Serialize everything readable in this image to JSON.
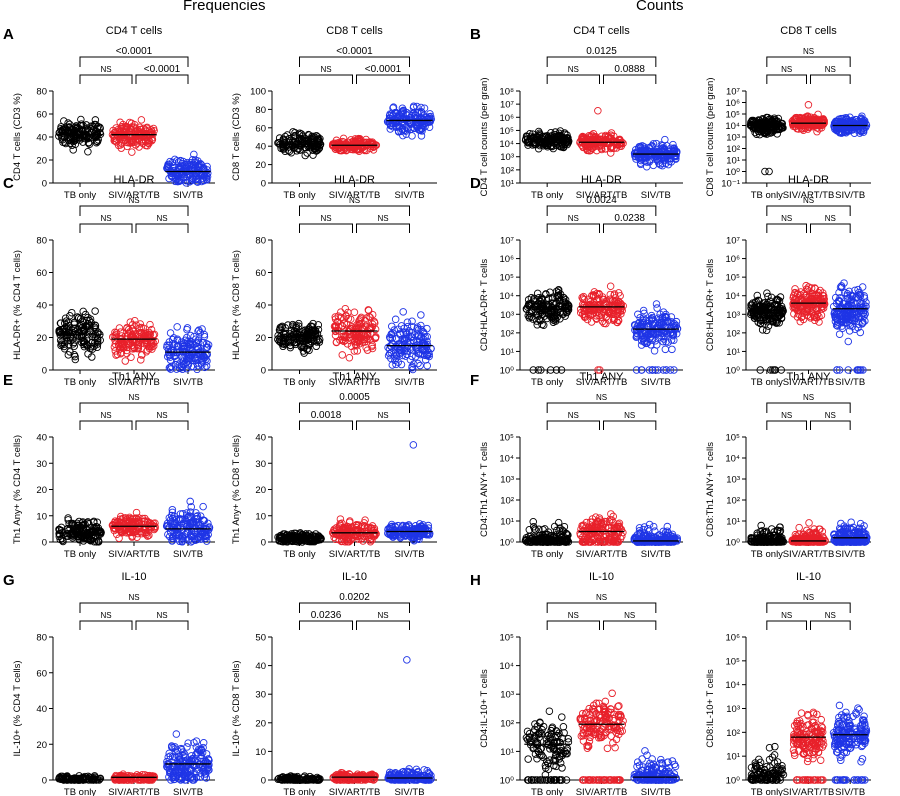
{
  "headers": {
    "left": "Frequencies",
    "right": "Counts"
  },
  "colors": {
    "tb": "#000000",
    "art": "#e8212b",
    "siv": "#1f35e6"
  },
  "categories": [
    "TB only",
    "SIV/ART/TB",
    "SIV/TB"
  ],
  "chart_data": [
    {
      "panel": "A",
      "title": "CD4 T cells",
      "type": "scatter",
      "ylabel": "CD4 T cells (CD3 %)",
      "scale": "linear",
      "ylim": [
        0,
        80
      ],
      "ticks": [
        0,
        20,
        40,
        60,
        80
      ],
      "medians": [
        42,
        42,
        10
      ],
      "ranges": [
        [
          6,
          64
        ],
        [
          18,
          72
        ],
        [
          0,
          58
        ]
      ],
      "outliers": [
        [],
        [],
        []
      ],
      "floor": [
        0,
        0,
        0
      ],
      "n": [
        140,
        140,
        150
      ],
      "comparisons": [
        {
          "from": 0,
          "to": 2,
          "label": "<0.0001"
        },
        {
          "from": 0,
          "to": 1,
          "label": "NS"
        },
        {
          "from": 1,
          "to": 2,
          "label": "<0.0001"
        }
      ]
    },
    {
      "panel": "",
      "title": "CD8 T cells",
      "type": "scatter",
      "ylabel": "CD8 T cells (CD3 %)",
      "scale": "linear",
      "ylim": [
        0,
        100
      ],
      "ticks": [
        0,
        20,
        40,
        60,
        80,
        100
      ],
      "medians": [
        42,
        41,
        68
      ],
      "ranges": [
        [
          0,
          58
        ],
        [
          28,
          62
        ],
        [
          15,
          84
        ]
      ],
      "outliers": [
        [],
        [],
        []
      ],
      "floor": [
        0,
        0,
        0
      ],
      "n": [
        130,
        140,
        150
      ],
      "comparisons": [
        {
          "from": 0,
          "to": 2,
          "label": "<0.0001"
        },
        {
          "from": 0,
          "to": 1,
          "label": "NS"
        },
        {
          "from": 1,
          "to": 2,
          "label": "<0.0001"
        }
      ]
    },
    {
      "panel": "B",
      "title": "CD4 T cells",
      "type": "scatter",
      "ylabel": "CD4 T cell counts (per gran)",
      "scale": "log",
      "ylim": [
        1,
        8
      ],
      "tickexp": [
        1,
        2,
        3,
        4,
        5,
        6,
        7,
        8
      ],
      "ylabels": [
        "10¹",
        "10²",
        "10³",
        "10⁴",
        "10⁵",
        "10⁶",
        "10⁷",
        "10⁸"
      ],
      "medians": [
        4.3,
        4.1,
        3.2
      ],
      "ranges": [
        [
          2.5,
          6.0
        ],
        [
          2.8,
          6.0
        ],
        [
          1.5,
          5.4
        ]
      ],
      "outliers": [
        [],
        [
          6.5
        ],
        []
      ],
      "floor": [
        0,
        0,
        0
      ],
      "n": [
        150,
        150,
        160
      ],
      "comparisons": [
        {
          "from": 0,
          "to": 2,
          "label": "0.0125"
        },
        {
          "from": 0,
          "to": 1,
          "label": "NS"
        },
        {
          "from": 1,
          "to": 2,
          "label": "0.0888"
        }
      ]
    },
    {
      "panel": "",
      "title": "CD8 T cells",
      "type": "scatter",
      "ylabel": "CD8 T cell counts (per gran)",
      "scale": "log",
      "ylim": [
        -1,
        7
      ],
      "tickexp": [
        -1,
        0,
        1,
        2,
        3,
        4,
        5,
        6,
        7
      ],
      "ylabels": [
        "10⁻¹",
        "10⁰",
        "10¹",
        "10²",
        "10³",
        "10⁴",
        "10⁵",
        "10⁶",
        "10⁷"
      ],
      "medians": [
        4.0,
        4.2,
        4.0
      ],
      "ranges": [
        [
          2.0,
          5.6
        ],
        [
          2.8,
          5.7
        ],
        [
          2.2,
          5.8
        ]
      ],
      "outliers": [
        [
          0,
          0
        ],
        [
          5.8
        ],
        []
      ],
      "floor": [
        0,
        0,
        0
      ],
      "n": [
        150,
        150,
        160
      ],
      "comparisons": [
        {
          "from": 0,
          "to": 2,
          "label": "NS"
        },
        {
          "from": 0,
          "to": 1,
          "label": "NS"
        },
        {
          "from": 1,
          "to": 2,
          "label": "NS"
        }
      ]
    },
    {
      "panel": "C",
      "title": "HLA-DR",
      "type": "scatter",
      "ylabel": "HLA-DR+ (% CD4 T cells)",
      "scale": "linear",
      "ylim": [
        0,
        80
      ],
      "ticks": [
        0,
        20,
        40,
        60,
        80
      ],
      "medians": [
        22,
        19,
        11
      ],
      "ranges": [
        [
          0,
          64
        ],
        [
          0,
          58
        ],
        [
          0,
          66
        ]
      ],
      "outliers": [
        [],
        [],
        []
      ],
      "floor": [
        0,
        0,
        0
      ],
      "n": [
        140,
        140,
        150
      ],
      "comparisons": [
        {
          "from": 0,
          "to": 2,
          "label": "NS"
        },
        {
          "from": 0,
          "to": 1,
          "label": "NS"
        },
        {
          "from": 1,
          "to": 2,
          "label": "NS"
        }
      ]
    },
    {
      "panel": "",
      "title": "HLA-DR",
      "type": "scatter",
      "ylabel": "HLA-DR+ (% CD8 T cells)",
      "scale": "linear",
      "ylim": [
        0,
        80
      ],
      "ticks": [
        0,
        20,
        40,
        60,
        80
      ],
      "medians": [
        21,
        24,
        15
      ],
      "ranges": [
        [
          0,
          45
        ],
        [
          0,
          65
        ],
        [
          0,
          72
        ]
      ],
      "outliers": [
        [],
        [],
        []
      ],
      "floor": [
        0,
        0,
        0
      ],
      "n": [
        140,
        140,
        150
      ],
      "comparisons": [
        {
          "from": 0,
          "to": 2,
          "label": "NS"
        },
        {
          "from": 0,
          "to": 1,
          "label": "NS"
        },
        {
          "from": 1,
          "to": 2,
          "label": "NS"
        }
      ]
    },
    {
      "panel": "D",
      "title": "HLA-DR",
      "type": "scatter",
      "ylabel": "CD4:HLA-DR+ T cells",
      "scale": "log",
      "ylim": [
        0,
        7
      ],
      "tickexp": [
        0,
        1,
        2,
        3,
        4,
        5,
        6,
        7
      ],
      "ylabels": [
        "10⁰",
        "10¹",
        "10²",
        "10³",
        "10⁴",
        "10⁵",
        "10⁶",
        "10⁷"
      ],
      "medians": [
        3.4,
        3.4,
        2.2
      ],
      "ranges": [
        [
          1.5,
          5.8
        ],
        [
          1.5,
          5.8
        ],
        [
          0.2,
          5.4
        ]
      ],
      "outliers": [
        [],
        [],
        []
      ],
      "floor": [
        6,
        2,
        14
      ],
      "n": [
        150,
        150,
        160
      ],
      "comparisons": [
        {
          "from": 0,
          "to": 2,
          "label": "0.0024"
        },
        {
          "from": 0,
          "to": 1,
          "label": "NS"
        },
        {
          "from": 1,
          "to": 2,
          "label": "0.0238"
        }
      ]
    },
    {
      "panel": "",
      "title": "HLA-DR",
      "type": "scatter",
      "ylabel": "CD8:HLA-DR+ T cells",
      "scale": "log",
      "ylim": [
        0,
        7
      ],
      "tickexp": [
        0,
        1,
        2,
        3,
        4,
        5,
        6,
        7
      ],
      "ylabels": [
        "10⁰",
        "10¹",
        "10²",
        "10³",
        "10⁴",
        "10⁵",
        "10⁶",
        "10⁷"
      ],
      "medians": [
        3.2,
        3.6,
        3.3
      ],
      "ranges": [
        [
          1.5,
          5.8
        ],
        [
          1.8,
          6.2
        ],
        [
          0.5,
          6.5
        ]
      ],
      "outliers": [
        [],
        [],
        []
      ],
      "floor": [
        6,
        0,
        10
      ],
      "n": [
        150,
        150,
        160
      ],
      "comparisons": [
        {
          "from": 0,
          "to": 2,
          "label": "NS"
        },
        {
          "from": 0,
          "to": 1,
          "label": "NS"
        },
        {
          "from": 1,
          "to": 2,
          "label": "NS"
        }
      ]
    },
    {
      "panel": "E",
      "title": "Th1 ANY",
      "type": "scatter",
      "ylabel": "Th1 Any+ (% CD4 T cells)",
      "scale": "linear",
      "ylim": [
        0,
        40
      ],
      "ticks": [
        0,
        10,
        20,
        30,
        40
      ],
      "medians": [
        3.5,
        6,
        5
      ],
      "ranges": [
        [
          0,
          23
        ],
        [
          0,
          19
        ],
        [
          0,
          38
        ]
      ],
      "outliers": [
        [],
        [],
        []
      ],
      "floor": [
        0,
        0,
        0
      ],
      "n": [
        140,
        140,
        150
      ],
      "comparisons": [
        {
          "from": 0,
          "to": 2,
          "label": "NS"
        },
        {
          "from": 0,
          "to": 1,
          "label": "NS"
        },
        {
          "from": 1,
          "to": 2,
          "label": "NS"
        }
      ]
    },
    {
      "panel": "",
      "title": "Th1 ANY",
      "type": "scatter",
      "ylabel": "Th1 Any+ (% CD8 T cells)",
      "scale": "linear",
      "ylim": [
        0,
        40
      ],
      "ticks": [
        0,
        10,
        20,
        30,
        40
      ],
      "medians": [
        1.5,
        3.5,
        4
      ],
      "ranges": [
        [
          0,
          10
        ],
        [
          0,
          19
        ],
        [
          0,
          15
        ]
      ],
      "outliers": [
        [],
        [],
        [
          37
        ]
      ],
      "floor": [
        0,
        0,
        0
      ],
      "n": [
        140,
        140,
        150
      ],
      "comparisons": [
        {
          "from": 0,
          "to": 2,
          "label": "0.0005"
        },
        {
          "from": 0,
          "to": 1,
          "label": "0.0018"
        },
        {
          "from": 1,
          "to": 2,
          "label": "NS"
        }
      ]
    },
    {
      "panel": "F",
      "title": "Th1 ANY",
      "type": "scatter",
      "ylabel": "CD4:Th1 ANY+ T cells",
      "scale": "log",
      "ylim": [
        0,
        5
      ],
      "tickexp": [
        0,
        1,
        2,
        3,
        4,
        5
      ],
      "ylabels": [
        "10⁰",
        "10¹",
        "10²",
        "10³",
        "10⁴",
        "10⁵"
      ],
      "medians": [
        0.05,
        0.5,
        0.05
      ],
      "ranges": [
        [
          0,
          3.8
        ],
        [
          0,
          3.2
        ],
        [
          0,
          3.2
        ]
      ],
      "outliers": [
        [],
        [],
        []
      ],
      "floor": [
        40,
        30,
        50
      ],
      "n": [
        120,
        130,
        120
      ],
      "comparisons": [
        {
          "from": 0,
          "to": 2,
          "label": "NS"
        },
        {
          "from": 0,
          "to": 1,
          "label": "NS"
        },
        {
          "from": 1,
          "to": 2,
          "label": "NS"
        }
      ]
    },
    {
      "panel": "",
      "title": "Th1 ANY",
      "type": "scatter",
      "ylabel": "CD8:Th1 ANY+ T cells",
      "scale": "log",
      "ylim": [
        0,
        5
      ],
      "tickexp": [
        0,
        1,
        2,
        3,
        4,
        5
      ],
      "ylabels": [
        "10⁰",
        "10¹",
        "10²",
        "10³",
        "10⁴",
        "10⁵"
      ],
      "medians": [
        0.05,
        0.05,
        0.2
      ],
      "ranges": [
        [
          0,
          3.6
        ],
        [
          0,
          3.3
        ],
        [
          0,
          3.4
        ]
      ],
      "outliers": [
        [],
        [],
        []
      ],
      "floor": [
        40,
        35,
        40
      ],
      "n": [
        90,
        120,
        140
      ],
      "comparisons": [
        {
          "from": 0,
          "to": 2,
          "label": "NS"
        },
        {
          "from": 0,
          "to": 1,
          "label": "NS"
        },
        {
          "from": 1,
          "to": 2,
          "label": "NS"
        }
      ]
    },
    {
      "panel": "G",
      "title": "IL-10",
      "type": "scatter",
      "ylabel": "IL-10+ (% CD4 T cells)",
      "scale": "linear",
      "ylim": [
        0,
        80
      ],
      "ticks": [
        0,
        20,
        40,
        60,
        80
      ],
      "medians": [
        0.5,
        1.5,
        9
      ],
      "ranges": [
        [
          0,
          14
        ],
        [
          0,
          8
        ],
        [
          0,
          59
        ]
      ],
      "outliers": [
        [],
        [],
        []
      ],
      "floor": [
        20,
        25,
        5
      ],
      "n": [
        70,
        80,
        170
      ],
      "comparisons": [
        {
          "from": 0,
          "to": 2,
          "label": "NS"
        },
        {
          "from": 0,
          "to": 1,
          "label": "NS"
        },
        {
          "from": 1,
          "to": 2,
          "label": "NS"
        }
      ]
    },
    {
      "panel": "",
      "title": "IL-10",
      "type": "scatter",
      "ylabel": "IL-10+ (% CD8 T cells)",
      "scale": "linear",
      "ylim": [
        0,
        50
      ],
      "ticks": [
        0,
        10,
        20,
        30,
        40,
        50
      ],
      "medians": [
        0.3,
        1,
        0.7
      ],
      "ranges": [
        [
          0,
          3
        ],
        [
          0,
          6
        ],
        [
          0,
          16
        ]
      ],
      "outliers": [
        [],
        [],
        [
          42
        ]
      ],
      "floor": [
        30,
        20,
        20
      ],
      "n": [
        80,
        100,
        110
      ],
      "comparisons": [
        {
          "from": 0,
          "to": 2,
          "label": "0.0202"
        },
        {
          "from": 0,
          "to": 1,
          "label": "0.0236"
        },
        {
          "from": 1,
          "to": 2,
          "label": "NS"
        }
      ]
    },
    {
      "panel": "H",
      "title": "IL-10",
      "type": "scatter",
      "ylabel": "CD4:IL-10+ T cells",
      "scale": "log",
      "ylim": [
        0,
        5
      ],
      "tickexp": [
        0,
        1,
        2,
        3,
        4,
        5
      ],
      "ylabels": [
        "10⁰",
        "10¹",
        "10²",
        "10³",
        "10⁴",
        "10⁵"
      ],
      "medians": [
        1.25,
        1.95,
        0.1
      ],
      "ranges": [
        [
          0,
          4.2
        ],
        [
          0,
          4.1
        ],
        [
          0,
          3.9
        ]
      ],
      "outliers": [
        [],
        [],
        []
      ],
      "floor": [
        30,
        35,
        35
      ],
      "n": [
        110,
        140,
        110
      ],
      "comparisons": [
        {
          "from": 0,
          "to": 2,
          "label": "NS"
        },
        {
          "from": 0,
          "to": 1,
          "label": "NS"
        },
        {
          "from": 1,
          "to": 2,
          "label": "NS"
        }
      ]
    },
    {
      "panel": "",
      "title": "IL-10",
      "type": "scatter",
      "ylabel": "CD8:IL-10+ T cells",
      "scale": "log",
      "ylim": [
        0,
        6
      ],
      "tickexp": [
        0,
        1,
        2,
        3,
        4,
        5,
        6
      ],
      "ylabels": [
        "10⁰",
        "10¹",
        "10²",
        "10³",
        "10⁴",
        "10⁵",
        "10⁶"
      ],
      "medians": [
        0.2,
        1.8,
        1.9
      ],
      "ranges": [
        [
          0,
          4.7
        ],
        [
          0,
          4.8
        ],
        [
          0,
          5.1
        ]
      ],
      "outliers": [
        [],
        [],
        []
      ],
      "floor": [
        25,
        20,
        20
      ],
      "n": [
        80,
        130,
        150
      ],
      "comparisons": [
        {
          "from": 0,
          "to": 2,
          "label": "NS"
        },
        {
          "from": 0,
          "to": 1,
          "label": "NS"
        },
        {
          "from": 1,
          "to": 2,
          "label": "NS"
        }
      ]
    }
  ]
}
